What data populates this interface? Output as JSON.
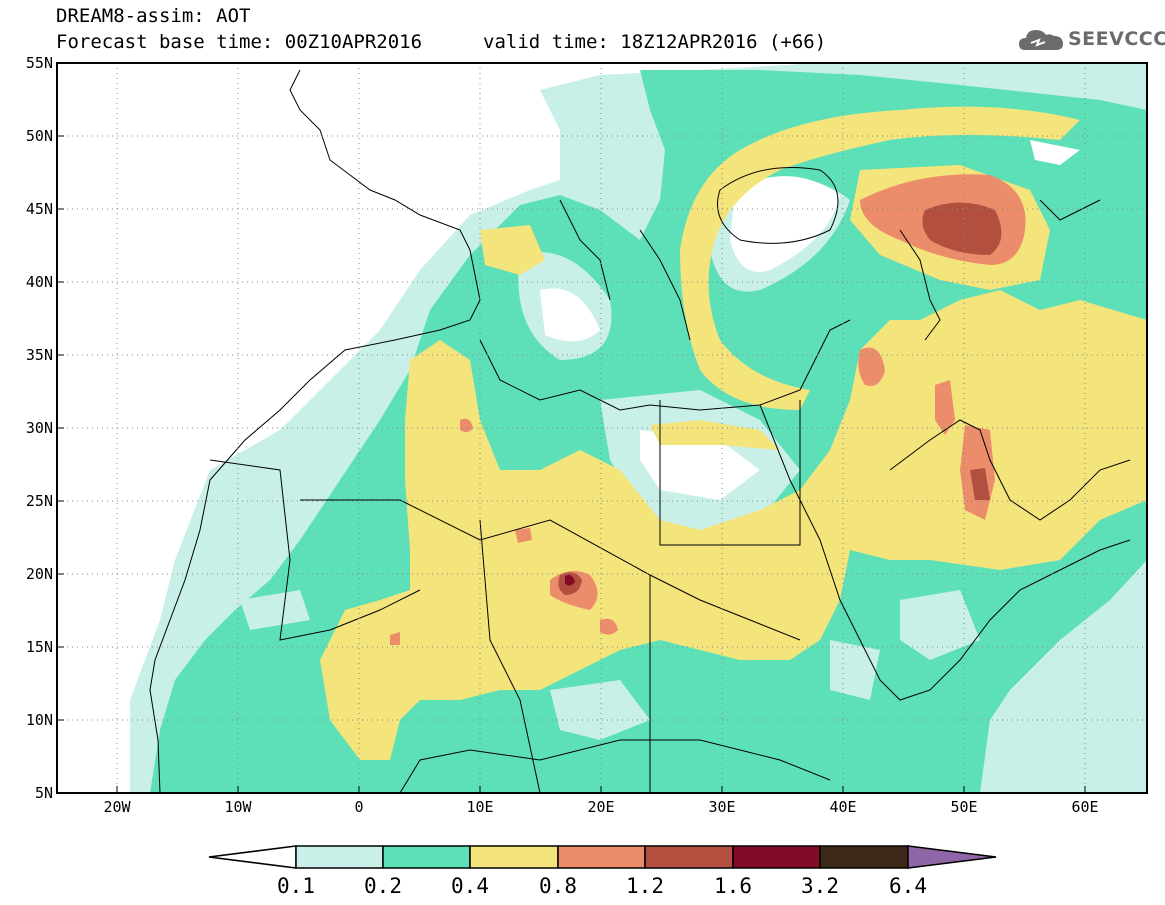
{
  "header": {
    "title": "DREAM8-assim: AOT",
    "base_time": "Forecast base time: 00Z10APR2016",
    "valid_time": "valid time: 18Z12APR2016 (+66)",
    "logo": "SEEVCCC"
  },
  "map": {
    "lat_labels": [
      "55N",
      "50N",
      "45N",
      "40N",
      "35N",
      "30N",
      "25N",
      "20N",
      "15N",
      "10N",
      "5N"
    ],
    "lon_labels": [
      "20W",
      "10W",
      "0",
      "10E",
      "20E",
      "30E",
      "40E",
      "50E",
      "60E"
    ],
    "lat_range": [
      5,
      55
    ],
    "lon_range": [
      -25,
      65
    ],
    "grid": "dotted"
  },
  "colorbar": {
    "levels": [
      "0.1",
      "0.2",
      "0.4",
      "0.8",
      "1.2",
      "1.6",
      "3.2",
      "6.4"
    ],
    "colors": [
      "#ffffff",
      "#c8f0e8",
      "#5ddfb8",
      "#f4e47c",
      "#eb8d6a",
      "#b34f3f",
      "#840a2a",
      "#3d2716",
      "#8f66a8"
    ]
  },
  "colors": {
    "c01": "#c8f0e8",
    "c02": "#5ddfb8",
    "c04": "#f4e47c",
    "c08": "#eb8d6a",
    "c12": "#b34f3f",
    "c16": "#840a2a",
    "c32": "#3d2716",
    "c64": "#8f66a8"
  }
}
